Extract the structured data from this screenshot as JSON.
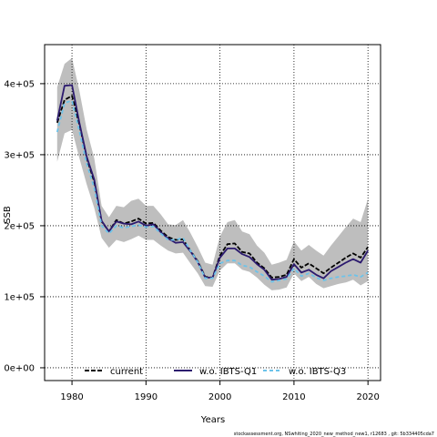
{
  "chart_data": {
    "type": "line",
    "xlabel": "Years",
    "ylabel": "SSB",
    "xlim": [
      1976.3,
      2021.7
    ],
    "ylim": [
      -18000,
      455000
    ],
    "x_ticks": [
      1980,
      1990,
      2000,
      2010,
      2020
    ],
    "x_tick_labels": [
      "1980",
      "1990",
      "2000",
      "2010",
      "2020"
    ],
    "y_ticks": [
      0,
      100000,
      200000,
      300000,
      400000
    ],
    "y_tick_labels": [
      "0e+00",
      "1e+05",
      "2e+05",
      "3e+05",
      "4e+05"
    ],
    "grid": "dotted, at ticks",
    "legend": "bottom",
    "x": [
      1978,
      1979,
      1980,
      1981,
      1982,
      1983,
      1984,
      1985,
      1986,
      1987,
      1988,
      1989,
      1990,
      1991,
      1992,
      1993,
      1994,
      1995,
      1996,
      1997,
      1998,
      1999,
      2000,
      2001,
      2002,
      2003,
      2004,
      2005,
      2006,
      2007,
      2008,
      2009,
      2010,
      2011,
      2012,
      2013,
      2014,
      2015,
      2016,
      2017,
      2018,
      2019,
      2020
    ],
    "band": {
      "upper": [
        395000,
        428000,
        436000,
        390000,
        335000,
        295000,
        228000,
        212000,
        228000,
        226000,
        235000,
        238000,
        228000,
        228000,
        216000,
        202000,
        201000,
        208000,
        190000,
        170000,
        148000,
        145000,
        185000,
        205000,
        208000,
        192000,
        188000,
        172000,
        162000,
        145000,
        148000,
        152000,
        178000,
        165000,
        173000,
        165000,
        158000,
        172000,
        185000,
        198000,
        210000,
        205000,
        238000
      ],
      "lower": [
        290000,
        330000,
        335000,
        295000,
        258000,
        225000,
        183000,
        169000,
        180000,
        177000,
        181000,
        186000,
        180000,
        180000,
        172000,
        165000,
        161000,
        162000,
        147000,
        133000,
        115000,
        114000,
        137000,
        147000,
        147000,
        138000,
        135000,
        127000,
        117000,
        109000,
        110000,
        113000,
        133000,
        122000,
        128000,
        118000,
        112000,
        115000,
        118000,
        120000,
        124000,
        116000,
        122000
      ],
      "color": "#bebebe"
    },
    "series": [
      {
        "name": "current",
        "color": "#000000",
        "dash": "5,2",
        "values": [
          345000,
          377000,
          383000,
          342000,
          295000,
          262000,
          206000,
          192000,
          208000,
          203000,
          206000,
          210000,
          203000,
          204000,
          193000,
          184000,
          180000,
          181000,
          165000,
          150000,
          128000,
          127000,
          158000,
          174000,
          175000,
          163000,
          161000,
          148000,
          140000,
          127000,
          128000,
          131000,
          153000,
          141000,
          147000,
          140000,
          133000,
          141000,
          148000,
          155000,
          161000,
          155000,
          170000
        ]
      },
      {
        "name": "w.o. IBTS-Q1",
        "color": "#2c1a6e",
        "dash": "",
        "values": [
          348000,
          397000,
          398000,
          345000,
          297000,
          265000,
          207000,
          192000,
          206000,
          203000,
          202000,
          206000,
          200000,
          202000,
          191000,
          182000,
          176000,
          177000,
          164000,
          149000,
          127000,
          127000,
          155000,
          168000,
          168000,
          160000,
          156000,
          146000,
          138000,
          124000,
          125000,
          128000,
          146000,
          134000,
          138000,
          131000,
          126000,
          136000,
          142000,
          148000,
          153000,
          148000,
          165000
        ]
      },
      {
        "name": "w.o. IBTS-Q3",
        "color": "#6cc3ea",
        "dash": "4,3",
        "values": [
          332000,
          373000,
          376000,
          333000,
          287000,
          253000,
          200000,
          189000,
          200000,
          197000,
          199000,
          201000,
          198000,
          199000,
          189000,
          180000,
          180000,
          183000,
          165000,
          149000,
          126000,
          126000,
          147000,
          151000,
          151000,
          144000,
          142000,
          135000,
          129000,
          121000,
          123000,
          125000,
          140000,
          129000,
          133000,
          127000,
          123000,
          126000,
          128000,
          129000,
          131000,
          128000,
          134000
        ]
      }
    ]
  },
  "footer": "stockassessment.org, NSwhiting_2020_new_method_new1, r12683 , git: 5b334405cda7"
}
